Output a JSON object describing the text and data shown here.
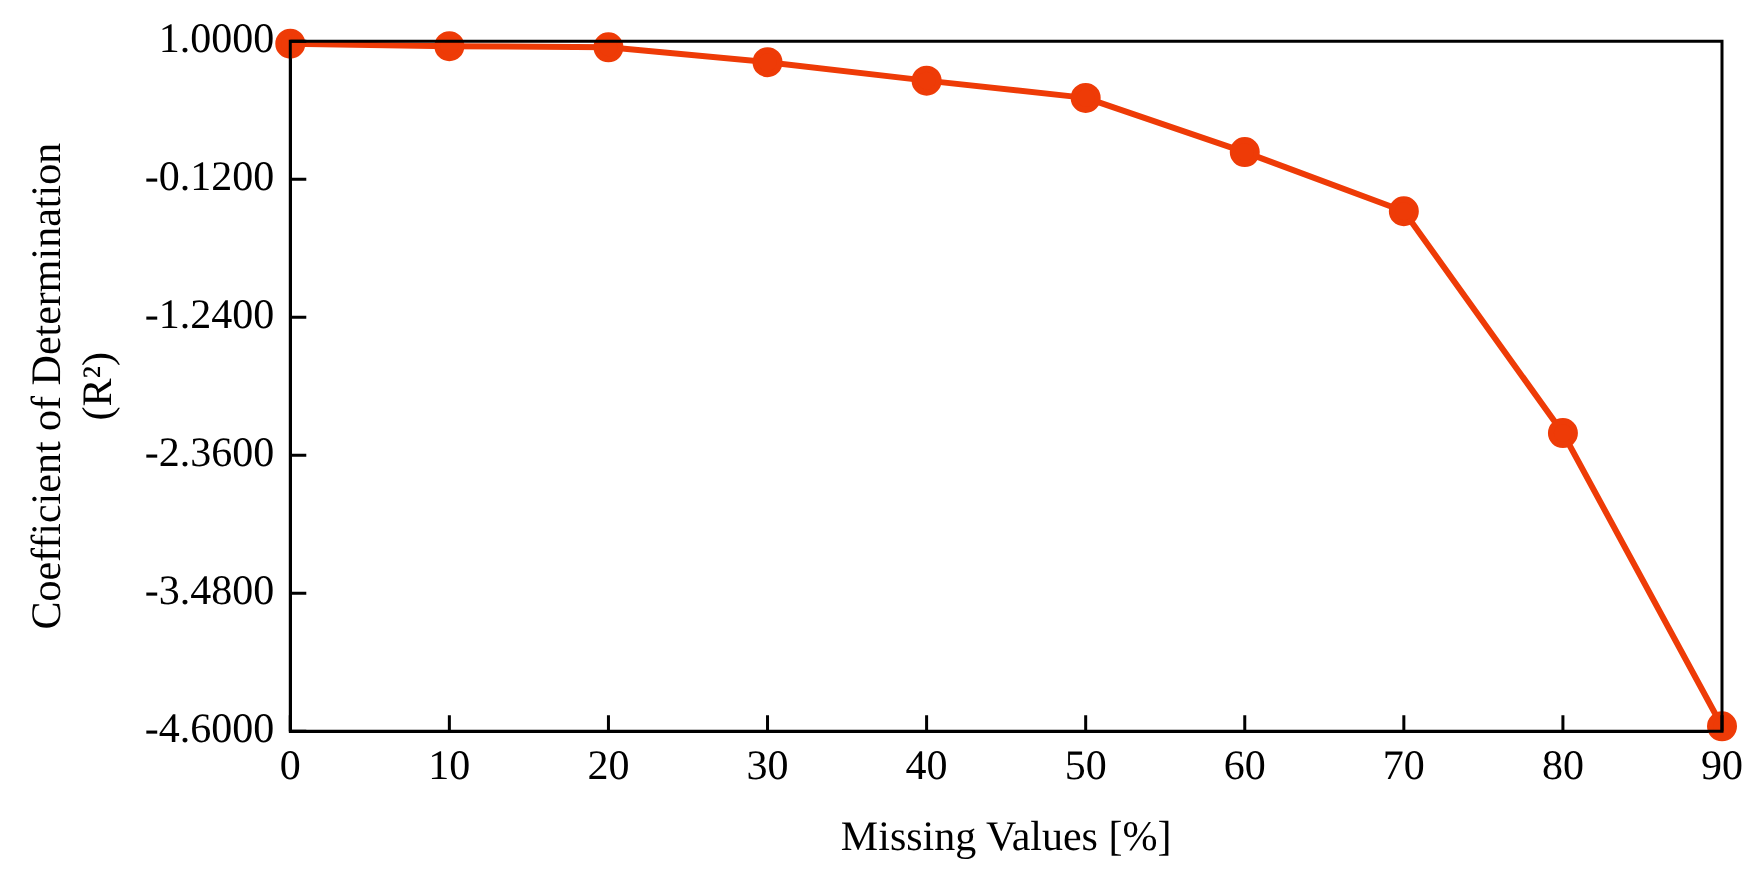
{
  "chart_data": {
    "type": "line",
    "xlabel": "Missing Values [%]",
    "ylabel": "Coefficient of Determination\n(R²)",
    "x": [
      0,
      10,
      20,
      30,
      40,
      50,
      60,
      70,
      80,
      90
    ],
    "series": [
      {
        "color": "#ee3b07",
        "values": [
          0.98,
          0.96,
          0.95,
          0.83,
          0.68,
          0.54,
          0.1,
          -0.38,
          -2.18,
          -4.56
        ]
      }
    ],
    "xlim": [
      0,
      90
    ],
    "xticks": [
      0,
      10,
      20,
      30,
      40,
      50,
      60,
      70,
      80,
      90
    ],
    "ylim": [
      -4.6,
      1.0
    ],
    "yticks": [
      {
        "value": -4.6,
        "label": "-4.6000"
      },
      {
        "value": -3.48,
        "label": "-3.4800"
      },
      {
        "value": -2.36,
        "label": "-2.3600"
      },
      {
        "value": -1.24,
        "label": "-1.2400"
      },
      {
        "value": -0.12,
        "label": "-0.1200"
      },
      {
        "value": 1.0,
        "label": "1.0000"
      }
    ],
    "grid": false,
    "legend": false,
    "marker": "circle",
    "line_style": "solid"
  }
}
